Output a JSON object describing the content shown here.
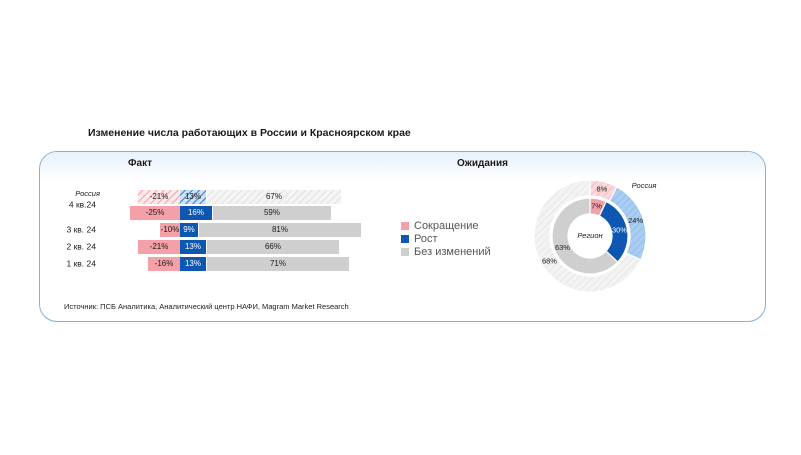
{
  "title": "Изменение числа работающих в России и Красноярском крае",
  "fact_title": "Факт",
  "expect_title": "Ожидания",
  "source": "Источник: ПСБ Аналитика, Аналитический центр НАФИ, Magram Market Research",
  "colors": {
    "decline": "#f4a0a8",
    "growth": "#0d57b0",
    "no_change": "#cfcfcf",
    "growth_light": "#9cc4ee"
  },
  "legend": [
    {
      "label": "Сокращение",
      "color": "#f4a0a8"
    },
    {
      "label": "Рост",
      "color": "#0d57b0"
    },
    {
      "label": "Без изменений",
      "color": "#cfcfcf"
    }
  ],
  "chart_data": [
    {
      "type": "bar",
      "stacked": "diverging",
      "title": "Факт",
      "categories": [
        "4 кв.24",
        "3 кв. 24",
        "2 кв. 24",
        "1 кв. 24"
      ],
      "series_labels": [
        "Сокращение",
        "Рост",
        "Без изменений"
      ],
      "russia_label": "Россия",
      "russia": {
        "category": "4 кв.24",
        "decline": -21,
        "growth": 13,
        "no_change": 67,
        "hatched": true
      },
      "rows": [
        {
          "category": "4 кв.24",
          "decline": -25,
          "growth": 16,
          "no_change": 59
        },
        {
          "category": "3 кв. 24",
          "decline": -10,
          "growth": 9,
          "no_change": 81
        },
        {
          "category": "2 кв. 24",
          "decline": -21,
          "growth": 13,
          "no_change": 66
        },
        {
          "category": "1 кв. 24",
          "decline": -16,
          "growth": 13,
          "no_change": 71
        }
      ]
    },
    {
      "type": "pie",
      "donut": true,
      "title": "Ожидания",
      "outer_label": "Россия",
      "inner_label": "Регион",
      "outer": [
        {
          "name": "Сокращение",
          "value": 8
        },
        {
          "name": "Рост",
          "value": 24
        },
        {
          "name": "Без изменений",
          "value": 68
        }
      ],
      "inner": [
        {
          "name": "Сокращение",
          "value": 7
        },
        {
          "name": "Рост",
          "value": 30
        },
        {
          "name": "Без изменений",
          "value": 63
        }
      ]
    }
  ]
}
